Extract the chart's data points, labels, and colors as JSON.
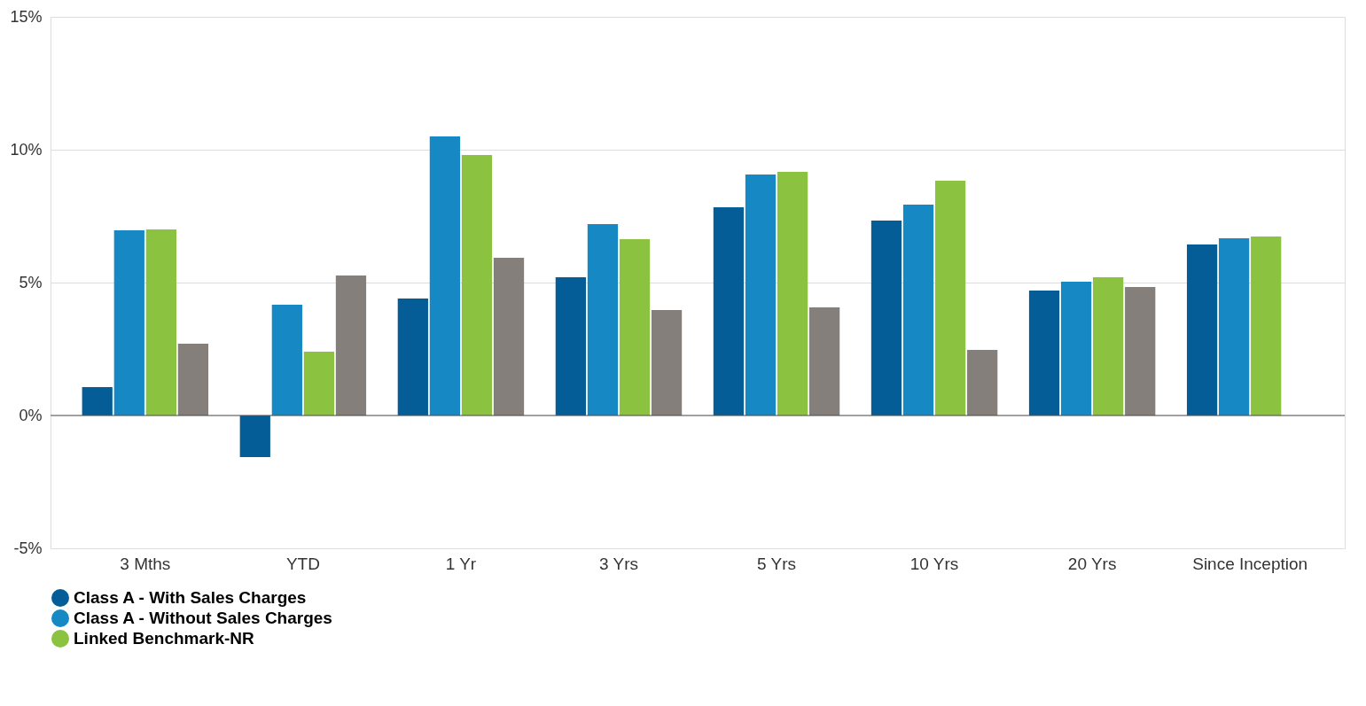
{
  "chart_data": {
    "type": "bar",
    "categories": [
      "3 Mths",
      "YTD",
      "1 Yr",
      "3 Yrs",
      "5 Yrs",
      "10 Yrs",
      "20 Yrs",
      "Since Inception"
    ],
    "series": [
      {
        "name": "Class A - With Sales Charges",
        "color": "#045d97",
        "values": [
          1.07,
          -1.57,
          4.4,
          5.2,
          7.83,
          7.33,
          4.7,
          6.43
        ]
      },
      {
        "name": "Class A - Without Sales Charges",
        "color": "#1689c5",
        "values": [
          6.97,
          4.17,
          10.5,
          7.2,
          9.07,
          7.93,
          5.03,
          6.67
        ]
      },
      {
        "name": "Linked Benchmark-NR",
        "color": "#8bc240",
        "values": [
          7.0,
          2.4,
          9.8,
          6.63,
          9.17,
          8.83,
          5.2,
          6.73
        ]
      },
      {
        "color": "#857f7b",
        "values": [
          2.7,
          5.27,
          5.93,
          3.97,
          4.07,
          2.47,
          4.83,
          null
        ]
      }
    ],
    "ylim": [
      -5,
      15
    ],
    "yticks": [
      {
        "value": -5,
        "label": "-5%"
      },
      {
        "value": 0,
        "label": "0%"
      },
      {
        "value": 5,
        "label": "5%"
      },
      {
        "value": 10,
        "label": "10%"
      },
      {
        "value": 15,
        "label": "15%"
      }
    ],
    "grid": "y",
    "legend": "bottom"
  }
}
